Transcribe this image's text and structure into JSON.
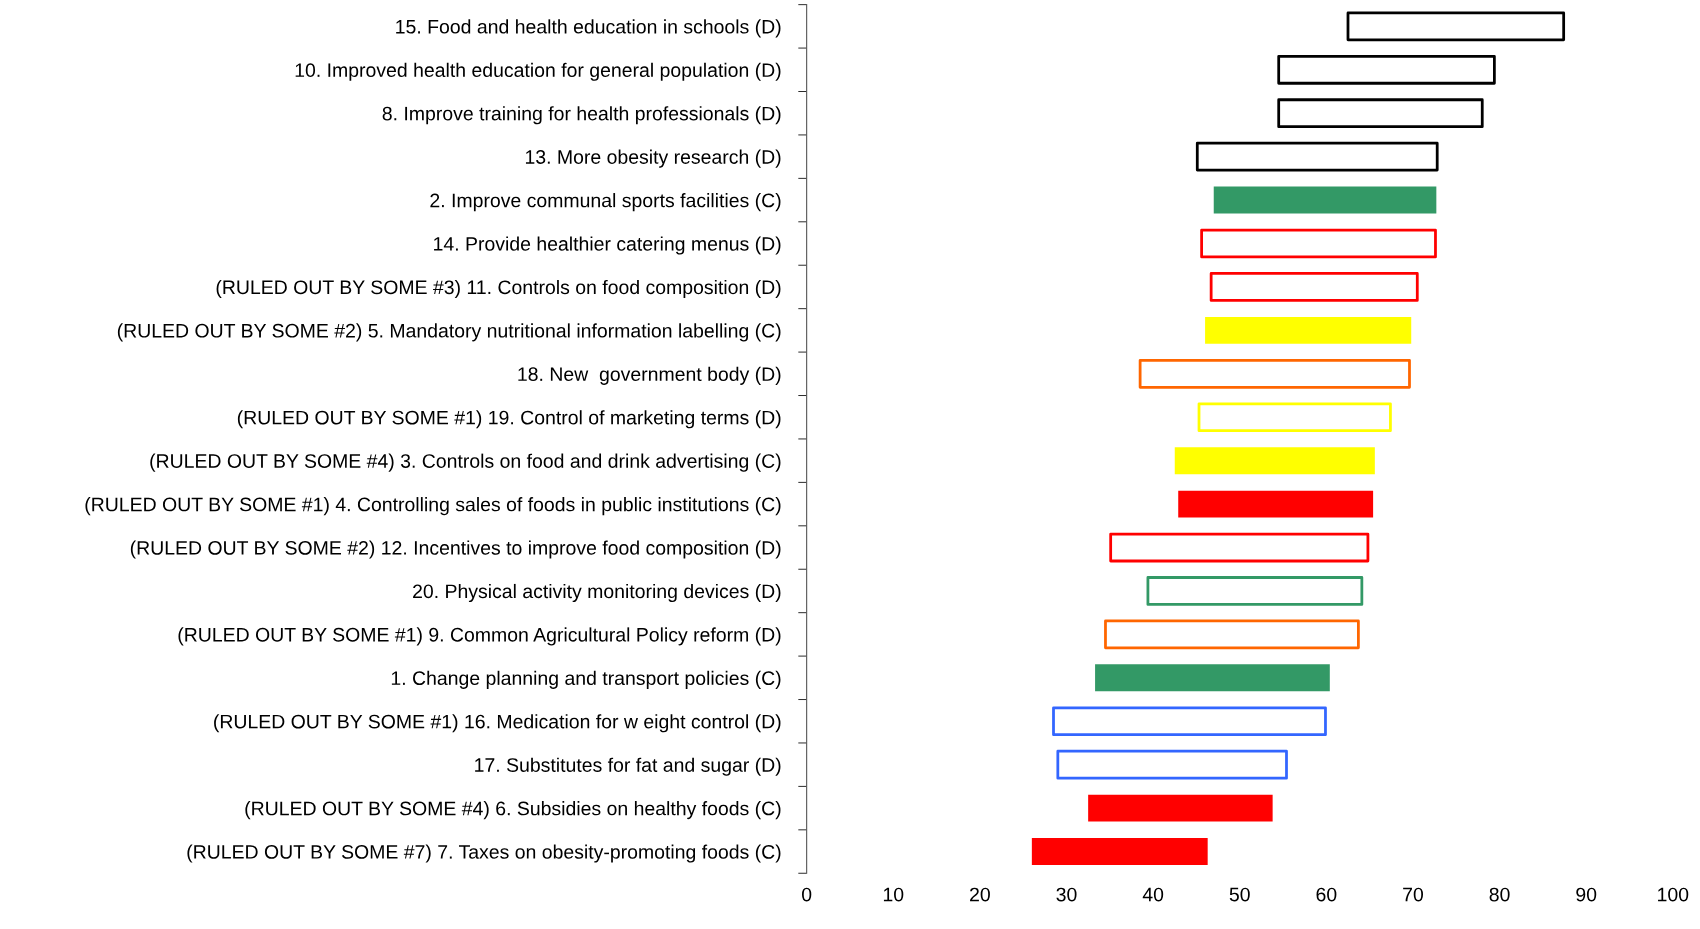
{
  "chart_data": {
    "type": "bar",
    "orientation": "horizontal",
    "categories": [
      "15. Food and health education in schools (D)",
      "10. Improved health education for general population (D)",
      "8. Improve training for health professionals (D)",
      "13. More obesity research (D)",
      "2. Improve communal sports facilities (C)",
      "14. Provide healthier catering menus (D)",
      "(RULED OUT BY SOME #3) 11. Controls on food composition (D)",
      "(RULED OUT BY SOME #2) 5. Mandatory nutritional information labelling (C)",
      "18. New  government body (D)",
      "(RULED OUT BY SOME #1) 19. Control of marketing terms (D)",
      "(RULED OUT BY SOME #4) 3. Controls on food and drink advertising (C)",
      "(RULED OUT BY SOME #1) 4. Controlling sales of foods in public institutions (C)",
      "(RULED OUT BY SOME #2) 12. Incentives to improve food composition (D)",
      "20. Physical activity monitoring devices (D)",
      "(RULED OUT BY SOME #1) 9. Common Agricultural Policy reform (D)",
      "1. Change planning and transport policies (C)",
      "(RULED OUT BY SOME #1) 16. Medication for w eight control (D)",
      "17. Substitutes for fat and sugar (D)",
      "(RULED OUT BY SOME #4) 6. Subsidies on healthy foods (C)",
      "(RULED OUT BY SOME #7) 7. Taxes on obesity-promoting foods (C)"
    ],
    "series": [
      {
        "base": [
          null,
          null,
          null,
          null,
          47.0,
          null,
          null,
          46.0,
          null,
          null,
          42.5,
          42.9,
          null,
          null,
          null,
          33.3,
          null,
          null,
          32.5,
          26.0
        ],
        "values": [
          null,
          null,
          null,
          null,
          25.7,
          null,
          null,
          23.8,
          null,
          null,
          23.1,
          22.5,
          null,
          null,
          null,
          27.1,
          null,
          null,
          21.3,
          20.3
        ],
        "colors": [
          null,
          null,
          null,
          null,
          "#339966",
          null,
          null,
          "#ffff00",
          null,
          null,
          "#ffff00",
          "#ff0000",
          null,
          null,
          null,
          "#339966",
          null,
          null,
          "#ff0000",
          "#ff0000"
        ]
      },
      {
        "base": [
          62.5,
          54.5,
          54.5,
          45.1,
          null,
          45.6,
          46.7,
          null,
          38.5,
          45.3,
          null,
          null,
          35.1,
          39.4,
          34.5,
          null,
          28.5,
          29.0,
          null,
          null
        ],
        "values": [
          24.9,
          24.9,
          23.5,
          27.7,
          null,
          27.0,
          23.8,
          null,
          31.1,
          22.1,
          null,
          null,
          29.7,
          24.7,
          29.2,
          null,
          31.4,
          26.4,
          null,
          null
        ],
        "colors": [
          "#000000",
          "#000000",
          "#000000",
          "#000000",
          null,
          "#ff0000",
          "#ff0000",
          null,
          "#ff6600",
          "#ffff00",
          null,
          null,
          "#ff0000",
          "#339966",
          "#ff6600",
          null,
          "#3366ff",
          "#3366ff",
          null,
          null
        ]
      }
    ],
    "xlim": [
      0,
      100
    ],
    "xticks": [
      0,
      10,
      20,
      30,
      40,
      50,
      60,
      70,
      80,
      90,
      100
    ],
    "grid": false,
    "legend": false
  }
}
